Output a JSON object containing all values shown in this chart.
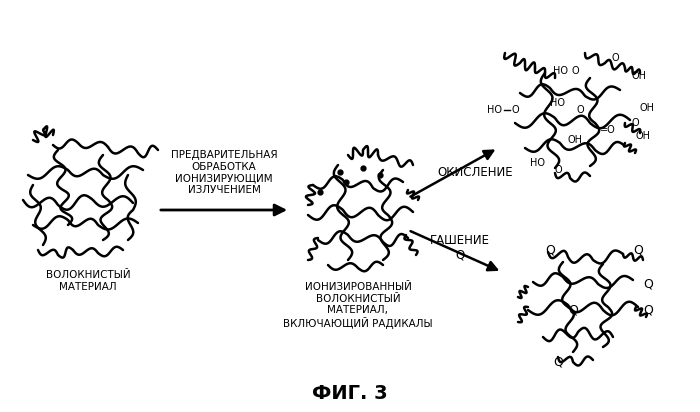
{
  "background_color": "#ffffff",
  "title": "ФИГ. 3",
  "title_fontsize": 14,
  "title_bold": true,
  "labels": {
    "fibrous_material": "ВОЛОКНИСТЫЙ\nМАТЕРИАЛ",
    "pretreatment": "ПРЕДВАРИТЕЛЬНАЯ\nОБРАБОТКА\nИОНИЗИРУЮЩИМ\nИЗЛУЧЕНИЕМ",
    "ionized_material": "ИОНИЗИРОВАННЫЙ\nВОЛОКНИСТЫЙ\nМАТЕРИАЛ,\nВКЛЮЧАЮЩИЙ РАДИКАЛЫ",
    "oxidation": "ОКИСЛЕНИЕ",
    "quenching": "ГАШЕНИЕ\nQ"
  },
  "font_size_labels": 7.5,
  "font_size_chem": 7,
  "font_size_Q": 9
}
